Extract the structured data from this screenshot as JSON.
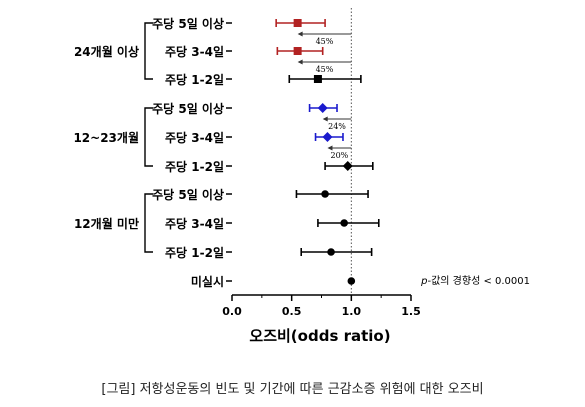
{
  "caption": "[그림] 저항성운동의 빈도 및 기간에 따른 근감소증 위험에 대한 오즈비",
  "chart_data": {
    "type": "forest",
    "xlabel": "오즈비(odds ratio)",
    "xlim": [
      0.0,
      1.5
    ],
    "x_ticks": [
      "0.0",
      "0.5",
      "1.0",
      "1.5"
    ],
    "reference_line": 1.0,
    "p_value_label": "p-값의 경향성 < 0.0001",
    "groups": [
      {
        "label": "24개월 이상",
        "rows": [
          {
            "label": "주당 5일 이상",
            "or": 0.55,
            "lo": 0.37,
            "hi": 0.78,
            "color": "#b22222",
            "marker": "square"
          },
          {
            "label": "주당 3-4일",
            "or": 0.55,
            "lo": 0.38,
            "hi": 0.76,
            "color": "#b22222",
            "marker": "square"
          },
          {
            "label": "주당 1-2일",
            "or": 0.72,
            "lo": 0.48,
            "hi": 1.08,
            "color": "#000000",
            "marker": "square"
          }
        ],
        "annotations": [
          {
            "text": "45%",
            "after_row": 0
          },
          {
            "text": "45%",
            "after_row": 1
          }
        ]
      },
      {
        "label": "12~23개월",
        "rows": [
          {
            "label": "주당 5일 이상",
            "or": 0.76,
            "lo": 0.65,
            "hi": 0.88,
            "color": "#1a1acd",
            "marker": "diamond"
          },
          {
            "label": "주당 3-4일",
            "or": 0.8,
            "lo": 0.7,
            "hi": 0.93,
            "color": "#1a1acd",
            "marker": "diamond"
          },
          {
            "label": "주당 1-2일",
            "or": 0.97,
            "lo": 0.78,
            "hi": 1.18,
            "color": "#000000",
            "marker": "diamond"
          }
        ],
        "annotations": [
          {
            "text": "24%",
            "after_row": 0
          },
          {
            "text": "20%",
            "after_row": 1
          }
        ]
      },
      {
        "label": "12개월 미만",
        "rows": [
          {
            "label": "주당 5일 이상",
            "or": 0.78,
            "lo": 0.54,
            "hi": 1.14,
            "color": "#000000",
            "marker": "circle"
          },
          {
            "label": "주당 3-4일",
            "or": 0.94,
            "lo": 0.72,
            "hi": 1.23,
            "color": "#000000",
            "marker": "circle"
          },
          {
            "label": "주당 1-2일",
            "or": 0.83,
            "lo": 0.58,
            "hi": 1.17,
            "color": "#000000",
            "marker": "circle"
          }
        ],
        "annotations": []
      }
    ],
    "reference_row": {
      "label": "미실시",
      "or": 1.0,
      "color": "#000000",
      "marker": "circle"
    }
  }
}
